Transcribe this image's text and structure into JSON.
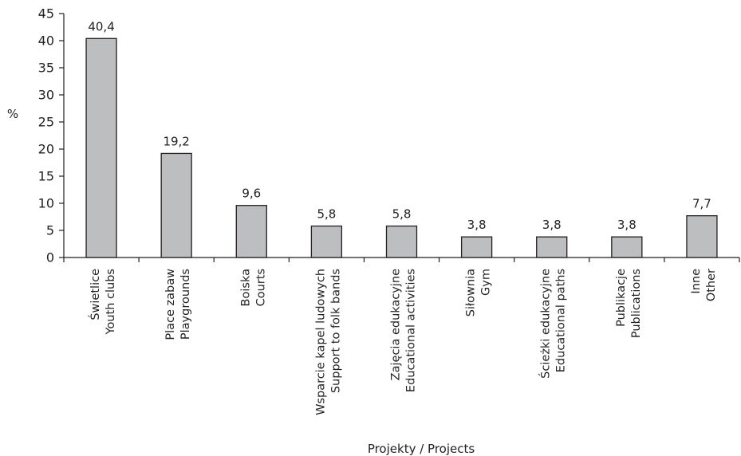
{
  "chart_data": {
    "type": "bar",
    "title": "",
    "ylabel": "%",
    "xlabel": "Projekty / Projects",
    "ylim": [
      0,
      45
    ],
    "yticks": [
      0,
      5,
      10,
      15,
      20,
      25,
      30,
      35,
      40,
      45
    ],
    "grid": false,
    "legend": "none",
    "bar_color": "#bcbec0",
    "bar_edge_color": "#231f20",
    "categories": [
      {
        "line1": "Świetlice",
        "line2": "Youth clubs"
      },
      {
        "line1": "Place zabaw",
        "line2": "Playgrounds"
      },
      {
        "line1": "Boiska",
        "line2": "Courts"
      },
      {
        "line1": "Wsparcie kapel ludowych",
        "line2": "Support to folk bands"
      },
      {
        "line1": "Zajęcia edukacyjne",
        "line2": "Educational activities"
      },
      {
        "line1": "Siłownia",
        "line2": "Gym"
      },
      {
        "line1": "Ścieżki edukacyjne",
        "line2": "Educational paths"
      },
      {
        "line1": "Publikacje",
        "line2": "Publications"
      },
      {
        "line1": "Inne",
        "line2": "Other"
      }
    ],
    "values": [
      40.4,
      19.2,
      9.6,
      5.8,
      5.8,
      3.8,
      3.8,
      3.8,
      7.7
    ],
    "value_labels": [
      "40,4",
      "19,2",
      "9,6",
      "5,8",
      "5,8",
      "3,8",
      "3,8",
      "3,8",
      "7,7"
    ]
  }
}
